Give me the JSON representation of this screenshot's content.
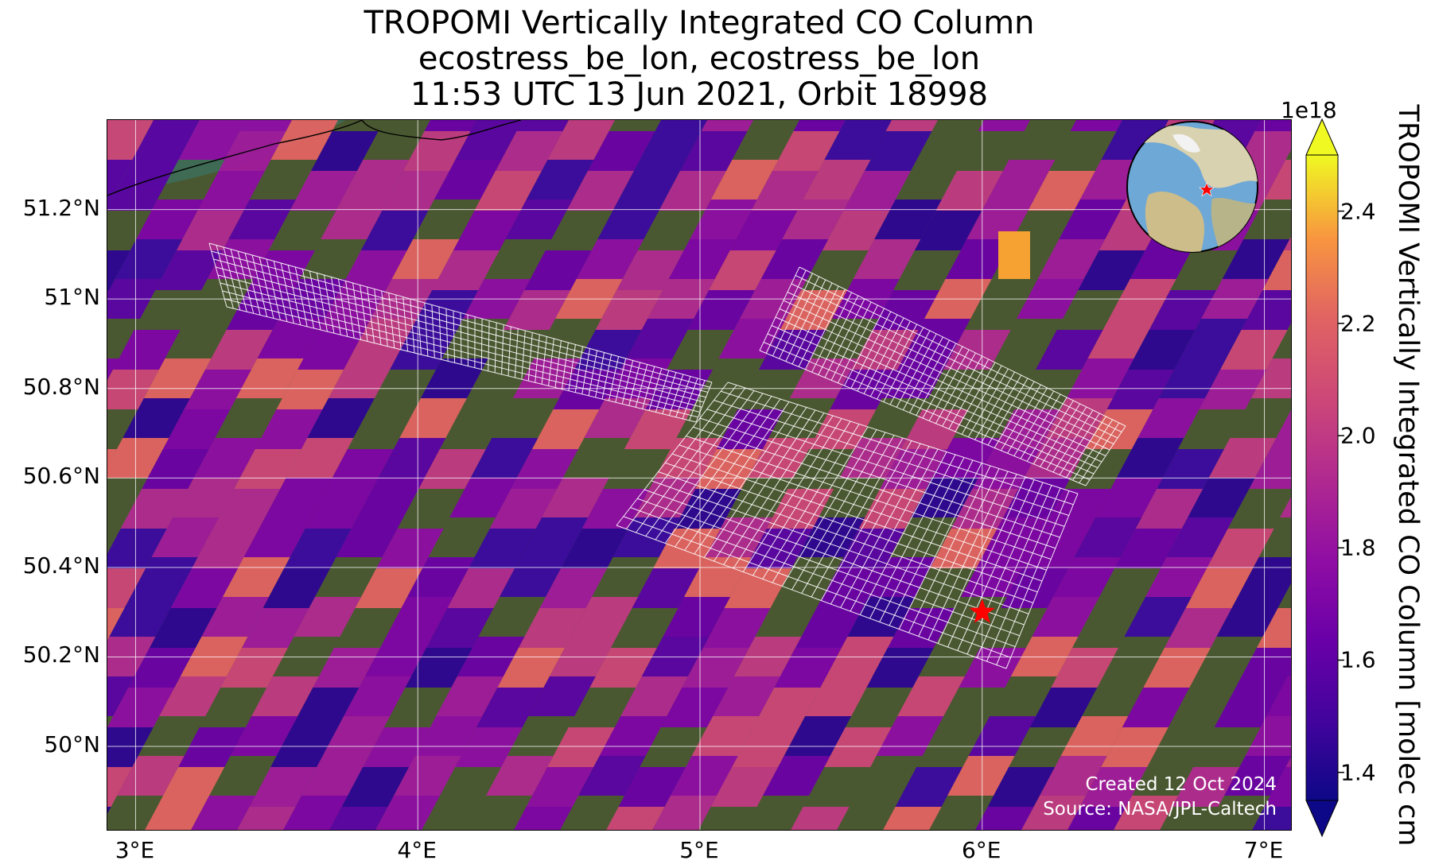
{
  "title": {
    "line1": "TROPOMI Vertically Integrated CO Column",
    "line2": "ecostress_be_lon, ecostress_be_lon",
    "line3": "11:53 UTC 13 Jun 2021, Orbit 18998"
  },
  "map": {
    "lon_range": [
      2.9,
      7.1
    ],
    "lat_range": [
      49.81,
      51.4
    ],
    "lat_ticks": [
      {
        "value": 51.2,
        "label": "51.2°N"
      },
      {
        "value": 51.0,
        "label": "51°N"
      },
      {
        "value": 50.8,
        "label": "50.8°N"
      },
      {
        "value": 50.6,
        "label": "50.6°N"
      },
      {
        "value": 50.4,
        "label": "50.4°N"
      },
      {
        "value": 50.2,
        "label": "50.2°N"
      },
      {
        "value": 50.0,
        "label": "50°N"
      }
    ],
    "lon_ticks": [
      {
        "value": 3,
        "label": "3°E"
      },
      {
        "value": 4,
        "label": "4°E"
      },
      {
        "value": 5,
        "label": "5°E"
      },
      {
        "value": 6,
        "label": "6°E"
      },
      {
        "value": 7,
        "label": "7°E"
      }
    ],
    "gridlines": true,
    "basemap": "satellite imagery",
    "target_marker": {
      "lon": 6.0,
      "lat": 50.3,
      "symbol": "red-star",
      "color": "#ff0000"
    },
    "credit": {
      "created": "Created 12 Oct 2024",
      "source": "Source: NASA/JPL-Caltech"
    },
    "inset_globe": {
      "marker": "red-star",
      "position": "top-right"
    }
  },
  "colorbar": {
    "label": "TROPOMI Vertically Integrated CO Column [molec cm",
    "exponent": "1e18",
    "range": [
      1.35,
      2.5
    ],
    "ticks": [
      {
        "value": 2.4,
        "label": "2.4"
      },
      {
        "value": 2.2,
        "label": "2.2"
      },
      {
        "value": 2.0,
        "label": "2.0"
      },
      {
        "value": 1.8,
        "label": "1.8"
      },
      {
        "value": 1.6,
        "label": "1.6"
      },
      {
        "value": 1.4,
        "label": "1.4"
      }
    ],
    "colormap": "plasma",
    "extend": "both"
  }
}
